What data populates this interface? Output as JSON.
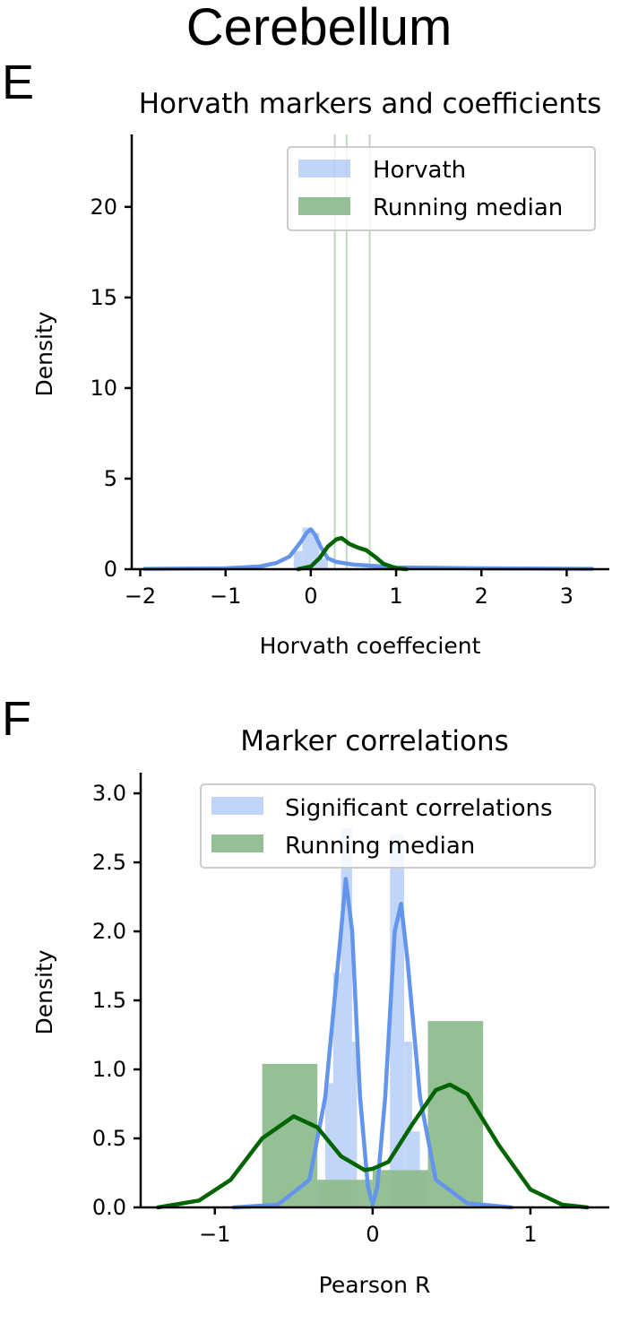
{
  "figure": {
    "suptitle": "Cerebellum"
  },
  "colors": {
    "horvath": "#6495ED",
    "median": "#006400",
    "median_bar": "#8FBC8F"
  },
  "chart_data": [
    {
      "panel_letter": "E",
      "type": "bar",
      "title": "Horvath markers and coefficients",
      "xlabel": "Horvath coeffecient",
      "ylabel": "Density",
      "xlim": [
        -2.1,
        3.5
      ],
      "ylim": [
        0,
        24
      ],
      "xticks": [
        -2,
        -1,
        0,
        1,
        2,
        3
      ],
      "xtick_labels": [
        "−2",
        "−1",
        "0",
        "1",
        "2",
        "3"
      ],
      "yticks": [
        0,
        5,
        10,
        15,
        20
      ],
      "ytick_labels": [
        "0",
        "5",
        "10",
        "15",
        "20"
      ],
      "grid": false,
      "legend_position": "top-right",
      "series": [
        {
          "name": "Horvath",
          "kind": "hist+kde",
          "bars": [
            {
              "x0": -0.2,
              "x1": -0.1,
              "h": 1.0
            },
            {
              "x0": -0.1,
              "x1": 0.0,
              "h": 2.3
            },
            {
              "x0": 0.0,
              "x1": 0.1,
              "h": 2.0
            },
            {
              "x0": 0.1,
              "x1": 0.2,
              "h": 0.6
            }
          ],
          "kde_x": [
            -1.95,
            -1.0,
            -0.6,
            -0.4,
            -0.25,
            -0.12,
            -0.05,
            0.0,
            0.05,
            0.12,
            0.2,
            0.3,
            0.5,
            1.0,
            2.0,
            3.3
          ],
          "kde_y": [
            0.02,
            0.05,
            0.15,
            0.35,
            0.7,
            1.5,
            2.0,
            2.2,
            1.9,
            1.2,
            0.6,
            0.4,
            0.25,
            0.1,
            0.05,
            0.02
          ]
        },
        {
          "name": "Running median",
          "kind": "hist+kde",
          "bars": [
            {
              "x0": 0.27,
              "x1": 0.29,
              "h": 24
            },
            {
              "x0": 0.41,
              "x1": 0.43,
              "h": 24
            },
            {
              "x0": 0.68,
              "x1": 0.7,
              "h": 24
            }
          ],
          "kde_x": [
            -0.15,
            0.0,
            0.1,
            0.2,
            0.3,
            0.36,
            0.45,
            0.55,
            0.65,
            0.75,
            0.85,
            1.0,
            1.12
          ],
          "kde_y": [
            0.0,
            0.15,
            0.6,
            1.25,
            1.65,
            1.72,
            1.4,
            1.2,
            1.05,
            0.7,
            0.3,
            0.05,
            0.0
          ]
        }
      ]
    },
    {
      "panel_letter": "F",
      "type": "bar",
      "title": "Marker correlations",
      "xlabel": "Pearson R",
      "ylabel": "Density",
      "xlim": [
        -1.47,
        1.5
      ],
      "ylim": [
        0,
        3.15
      ],
      "xticks": [
        -1,
        0,
        1
      ],
      "xtick_labels": [
        "−1",
        "0",
        "1"
      ],
      "yticks": [
        0.0,
        0.5,
        1.0,
        1.5,
        2.0,
        2.5,
        3.0
      ],
      "ytick_labels": [
        "0.0",
        "0.5",
        "1.0",
        "1.5",
        "2.0",
        "2.5",
        "3.0"
      ],
      "grid": false,
      "legend_position": "top-right",
      "series": [
        {
          "name": "Significant correlations",
          "kind": "hist+kde",
          "bars": [
            {
              "x0": -0.35,
              "x1": -0.3,
              "h": 0.2
            },
            {
              "x0": -0.3,
              "x1": -0.25,
              "h": 0.9
            },
            {
              "x0": -0.25,
              "x1": -0.2,
              "h": 1.7
            },
            {
              "x0": -0.2,
              "x1": -0.13,
              "h": 2.75
            },
            {
              "x0": -0.13,
              "x1": -0.1,
              "h": 1.2
            },
            {
              "x0": 0.11,
              "x1": 0.2,
              "h": 2.7
            },
            {
              "x0": 0.2,
              "x1": 0.25,
              "h": 1.2
            },
            {
              "x0": 0.25,
              "x1": 0.3,
              "h": 0.55
            },
            {
              "x0": 0.3,
              "x1": 0.35,
              "h": 0.25
            }
          ],
          "kde_x": [
            -0.88,
            -0.6,
            -0.4,
            -0.3,
            -0.2,
            -0.17,
            -0.13,
            -0.08,
            -0.03,
            0.0,
            0.03,
            0.08,
            0.14,
            0.18,
            0.22,
            0.3,
            0.4,
            0.6,
            0.88
          ],
          "kde_y": [
            0.0,
            0.02,
            0.2,
            0.8,
            2.0,
            2.38,
            2.0,
            0.8,
            0.15,
            0.02,
            0.15,
            0.8,
            2.0,
            2.2,
            1.8,
            0.8,
            0.2,
            0.03,
            0.0
          ]
        },
        {
          "name": "Running median",
          "kind": "hist+kde",
          "bars": [
            {
              "x0": -0.7,
              "x1": -0.35,
              "h": 1.04
            },
            {
              "x0": -0.35,
              "x1": 0.0,
              "h": 0.2
            },
            {
              "x0": 0.0,
              "x1": 0.35,
              "h": 0.27
            },
            {
              "x0": 0.35,
              "x1": 0.7,
              "h": 1.35
            }
          ],
          "kde_x": [
            -1.36,
            -1.1,
            -0.9,
            -0.7,
            -0.5,
            -0.35,
            -0.2,
            -0.05,
            0.0,
            0.1,
            0.25,
            0.4,
            0.49,
            0.6,
            0.8,
            1.0,
            1.2,
            1.36
          ],
          "kde_y": [
            0.0,
            0.05,
            0.2,
            0.5,
            0.66,
            0.58,
            0.37,
            0.27,
            0.28,
            0.33,
            0.6,
            0.85,
            0.89,
            0.82,
            0.45,
            0.13,
            0.02,
            0.0
          ]
        }
      ]
    }
  ]
}
